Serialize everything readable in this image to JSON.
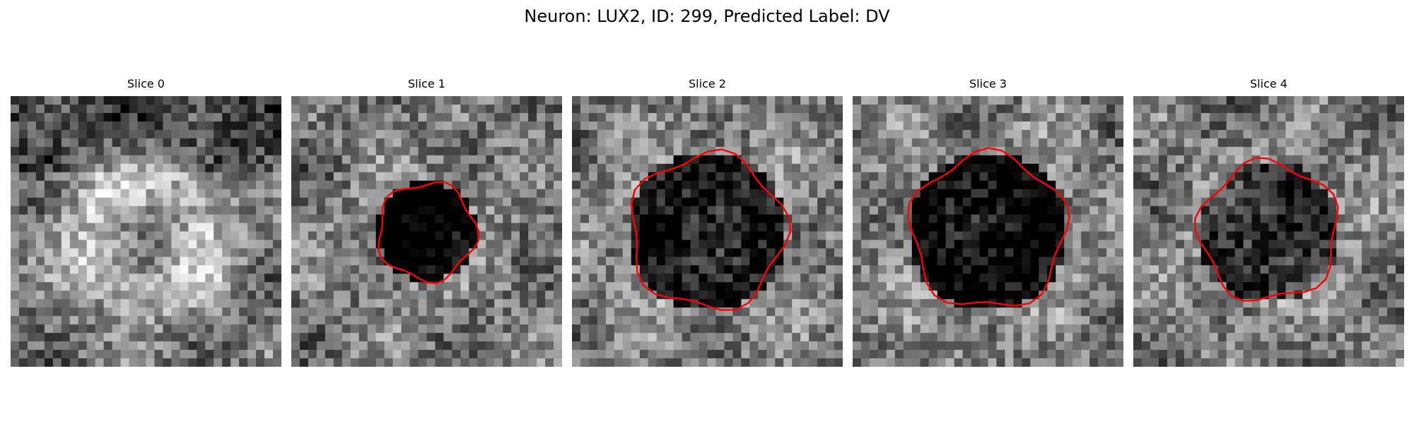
{
  "figure": {
    "title": "Neuron: LUX2, ID: 299, Predicted Label: DV"
  },
  "panels": [
    {
      "title": "Slice 0",
      "seed": 11,
      "center": [
        0.5,
        0.5
      ],
      "bright_ring": true,
      "contour": false,
      "contour_color": "#ff0000"
    },
    {
      "title": "Slice 1",
      "seed": 23,
      "center": [
        0.5,
        0.5
      ],
      "bright_ring": false,
      "contour": true,
      "contour_color": "#ff0000"
    },
    {
      "title": "Slice 2",
      "seed": 37,
      "center": [
        0.5,
        0.5
      ],
      "bright_ring": false,
      "contour": true,
      "contour_color": "#ff0000"
    },
    {
      "title": "Slice 3",
      "seed": 41,
      "center": [
        0.5,
        0.5
      ],
      "bright_ring": false,
      "contour": true,
      "contour_color": "#ff0000"
    },
    {
      "title": "Slice 4",
      "seed": 53,
      "center": [
        0.5,
        0.5
      ],
      "bright_ring": false,
      "contour": true,
      "contour_color": "#ff0000"
    }
  ],
  "colormap": "gray"
}
